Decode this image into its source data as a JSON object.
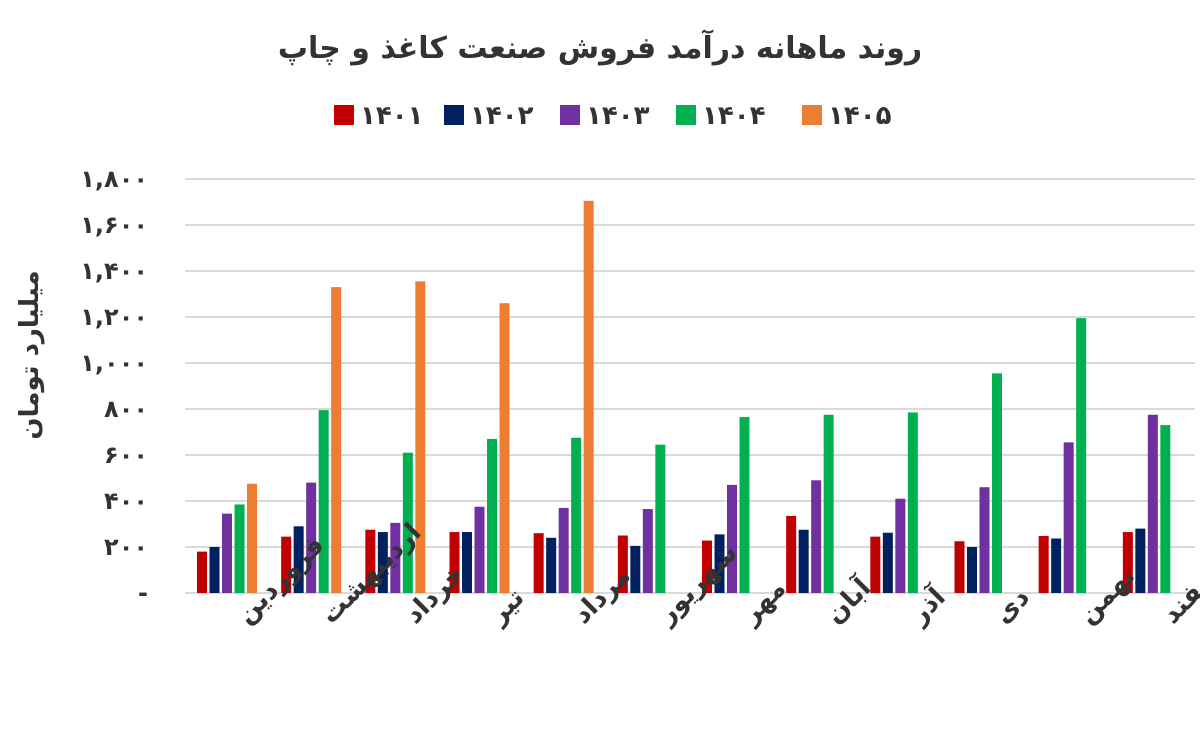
{
  "chart_data": {
    "type": "bar",
    "title": "روند ماهانه درآمد فروش صنعت کاغذ و چاپ",
    "ylabel": "میلیارد تومان",
    "xlabel": "",
    "ylim": [
      0,
      1800
    ],
    "y_ticks": [
      {
        "value": 0,
        "label": "-"
      },
      {
        "value": 200,
        "label": "۲۰۰"
      },
      {
        "value": 400,
        "label": "۴۰۰"
      },
      {
        "value": 600,
        "label": "۶۰۰"
      },
      {
        "value": 800,
        "label": "۸۰۰"
      },
      {
        "value": 1000,
        "label": "۱,۰۰۰"
      },
      {
        "value": 1200,
        "label": "۱,۲۰۰"
      },
      {
        "value": 1400,
        "label": "۱,۴۰۰"
      },
      {
        "value": 1600,
        "label": "۱,۶۰۰"
      },
      {
        "value": 1800,
        "label": "۱,۸۰۰"
      }
    ],
    "grid": true,
    "legend_position": "top",
    "categories": [
      "فروردین",
      "اردیبهشت",
      "خرداد",
      "تیر",
      "مرداد",
      "شهریور",
      "مهر",
      "آبان",
      "آذر",
      "دی",
      "بهمن",
      "اسفند"
    ],
    "series": [
      {
        "name": "۱۴۰۱",
        "color": "#c00000",
        "values": [
          180,
          245,
          275,
          265,
          260,
          250,
          228,
          335,
          245,
          225,
          248,
          265
        ]
      },
      {
        "name": "۱۴۰۲",
        "color": "#002060",
        "values": [
          200,
          290,
          265,
          265,
          240,
          205,
          255,
          275,
          262,
          200,
          237,
          280
        ]
      },
      {
        "name": "۱۴۰۳",
        "color": "#7030a0",
        "values": [
          345,
          480,
          305,
          375,
          370,
          365,
          470,
          490,
          410,
          460,
          655,
          775
        ]
      },
      {
        "name": "۱۴۰۴",
        "color": "#00b050",
        "values": [
          385,
          795,
          610,
          670,
          675,
          645,
          765,
          775,
          785,
          955,
          1195,
          730
        ]
      },
      {
        "name": "۱۴۰۵",
        "color": "#ed7d31",
        "values": [
          475,
          1330,
          1355,
          1260,
          1705,
          null,
          null,
          null,
          null,
          null,
          null,
          null
        ]
      }
    ]
  }
}
